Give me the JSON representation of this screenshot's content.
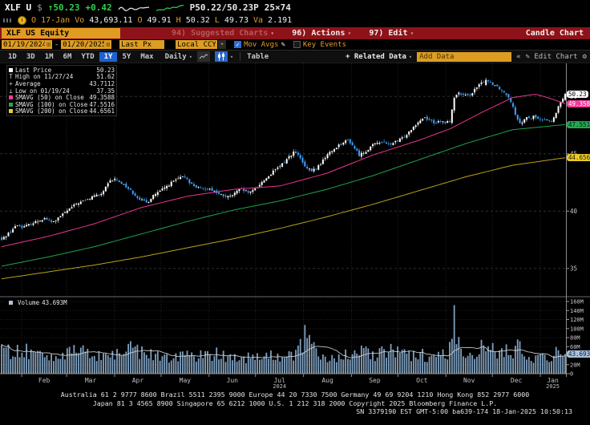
{
  "titlebar": {
    "ticker": "XLF U",
    "currency": "$",
    "last": "↑50.23",
    "change": "+0.42",
    "bid_ask": "P50.22/50.23P",
    "size": "25×74",
    "row2": {
      "o_label": "O",
      "date": "17-Jan",
      "vo_label": "Vo",
      "vo": "43,693.11",
      "open_label": "O",
      "open": "49.91",
      "high_label": "H",
      "high": "50.32",
      "low_label": "L",
      "low": "49.73",
      "va_label": "Va",
      "va": "2.191"
    }
  },
  "securitybar": {
    "security": "XLF US Equity",
    "suggested": "94) Suggested Charts",
    "actions": "96) Actions",
    "edit": "97) Edit",
    "right_label": "Candle Chart"
  },
  "toolbar": {
    "date_from": "01/19/2024",
    "date_to": "01/20/2025",
    "price_field": "Last Px",
    "currency_field": "Local CCY",
    "mov_avgs_label": "Mov Avgs",
    "key_events_label": "Key Events"
  },
  "tabsbar": {
    "ranges": [
      "1D",
      "3D",
      "1M",
      "6M",
      "YTD",
      "1Y",
      "5Y",
      "Max"
    ],
    "active_range": "1Y",
    "period": "Daily",
    "table_label": "Table",
    "related_data": "+ Related Data",
    "add_data_value": "Add Data",
    "edit_chart": "Edit Chart"
  },
  "icons": {
    "caret_down": "▾",
    "calendar": "⊞",
    "check": "✓",
    "pencil": "✎",
    "gear": "⚙",
    "collapse": "«"
  },
  "legend": {
    "items": [
      {
        "label": "Last Price",
        "value": "50.23"
      },
      {
        "glyph": "T",
        "label": "High on 11/27/24",
        "value": "51.62"
      },
      {
        "glyph": "+",
        "label": "Average",
        "value": "43.7112"
      },
      {
        "glyph": "⊥",
        "label": "Low on 01/19/24",
        "value": "37.35"
      },
      {
        "label": "SMAVG (50)  on Close",
        "value": "49.3588"
      },
      {
        "label": "SMAVG (100)  on Close",
        "value": "47.5516"
      },
      {
        "label": "SMAVG (200)  on Close",
        "value": "44.6561"
      }
    ]
  },
  "volume_legend": {
    "label": "Volume",
    "value": "43.693M"
  },
  "badges": {
    "last": {
      "text": "50.23",
      "value": 50.23
    },
    "sma50": {
      "text": "49.3588",
      "value": 49.3588
    },
    "sma100": {
      "text": "47.5516",
      "value": 47.5516
    },
    "sma200": {
      "text": "44.6561",
      "value": 44.6561
    },
    "volume": {
      "text": "43.693M",
      "value_m": 43.693
    }
  },
  "colors": {
    "up_candle": "#ffffff",
    "down_candle": "#3fa2ff",
    "sma50": "#e8378e",
    "sma100": "#1fa34d",
    "sma200": "#b8a11c",
    "volume_bar": "#7fa0c0",
    "volume_ma": "#d9d9d9",
    "amber": "#dd9d22",
    "red_bar": "#8d1219",
    "active_tab": "#1e62d0",
    "axis_text": "#c9c9c9"
  },
  "chart_data": {
    "type": "candlestick+volume",
    "security": "XLF US Equity",
    "date_range": [
      "2024-01-19",
      "2025-01-17"
    ],
    "last_price": 50.23,
    "high_marker": {
      "date": "11/27/24",
      "value": 51.62
    },
    "low_marker": {
      "date": "01/19/24",
      "value": 37.35
    },
    "average": 43.7112,
    "price_axis": {
      "ticks": [
        35,
        40,
        45,
        50
      ],
      "range": [
        34.2,
        52.3
      ]
    },
    "volume_axis": {
      "ticks_millions": [
        0,
        20,
        40,
        60,
        80,
        100,
        120,
        140,
        160
      ]
    },
    "months": [
      {
        "label": "Feb"
      },
      {
        "label": "Mar"
      },
      {
        "label": "Apr"
      },
      {
        "label": "May"
      },
      {
        "label": "Jun"
      },
      {
        "label": "Jul",
        "year": "2024"
      },
      {
        "label": "Aug"
      },
      {
        "label": "Sep"
      },
      {
        "label": "Oct"
      },
      {
        "label": "Nov"
      },
      {
        "label": "Dec"
      },
      {
        "label": "Jan",
        "year": "2025"
      }
    ],
    "weekly_closes": [
      [
        0,
        37.5
      ],
      [
        3,
        37.9
      ],
      [
        7,
        38.4
      ],
      [
        10,
        38.8
      ],
      [
        14,
        38.6
      ],
      [
        21,
        39.0
      ],
      [
        28,
        39.4
      ],
      [
        32,
        39.0
      ],
      [
        35,
        39.2
      ],
      [
        42,
        40.0
      ],
      [
        49,
        40.7
      ],
      [
        56,
        41.0
      ],
      [
        60,
        41.4
      ],
      [
        63,
        41.3
      ],
      [
        66,
        41.8
      ],
      [
        70,
        42.6
      ],
      [
        73,
        42.8
      ],
      [
        77,
        42.5
      ],
      [
        80,
        42.2
      ],
      [
        84,
        41.7
      ],
      [
        88,
        41.2
      ],
      [
        91,
        40.9
      ],
      [
        94,
        40.7
      ],
      [
        98,
        41.4
      ],
      [
        101,
        41.6
      ],
      [
        105,
        42.0
      ],
      [
        108,
        42.3
      ],
      [
        112,
        42.7
      ],
      [
        116,
        42.9
      ],
      [
        119,
        43.0
      ],
      [
        122,
        42.4
      ],
      [
        126,
        42.1
      ],
      [
        129,
        41.9
      ],
      [
        133,
        42.0
      ],
      [
        137,
        41.8
      ],
      [
        140,
        41.5
      ],
      [
        144,
        41.3
      ],
      [
        147,
        41.2
      ],
      [
        151,
        41.6
      ],
      [
        154,
        41.9
      ],
      [
        158,
        41.7
      ],
      [
        161,
        41.6
      ],
      [
        164,
        42.0
      ],
      [
        168,
        42.5
      ],
      [
        172,
        43.0
      ],
      [
        175,
        43.4
      ],
      [
        179,
        43.8
      ],
      [
        182,
        44.2
      ],
      [
        186,
        44.8
      ],
      [
        189,
        45.2
      ],
      [
        193,
        44.6
      ],
      [
        196,
        43.8
      ],
      [
        200,
        43.5
      ],
      [
        203,
        43.7
      ],
      [
        207,
        44.3
      ],
      [
        210,
        44.9
      ],
      [
        214,
        45.3
      ],
      [
        217,
        45.7
      ],
      [
        221,
        46.0
      ],
      [
        224,
        46.2
      ],
      [
        228,
        45.5
      ],
      [
        231,
        44.9
      ],
      [
        235,
        45.2
      ],
      [
        238,
        45.6
      ],
      [
        242,
        45.9
      ],
      [
        245,
        46.1
      ],
      [
        249,
        45.8
      ],
      [
        252,
        45.9
      ],
      [
        256,
        46.1
      ],
      [
        259,
        46.4
      ],
      [
        263,
        46.9
      ],
      [
        266,
        47.4
      ],
      [
        270,
        47.9
      ],
      [
        273,
        48.2
      ],
      [
        277,
        47.9
      ],
      [
        280,
        47.7
      ],
      [
        284,
        47.8
      ],
      [
        287,
        47.7
      ],
      [
        290,
        47.9
      ],
      [
        292,
        49.8
      ],
      [
        294,
        50.3
      ],
      [
        298,
        50.1
      ],
      [
        301,
        50.0
      ],
      [
        305,
        50.5
      ],
      [
        308,
        50.9
      ],
      [
        311,
        51.3
      ],
      [
        313,
        51.45
      ],
      [
        316,
        51.2
      ],
      [
        320,
        50.9
      ],
      [
        324,
        50.4
      ],
      [
        327,
        50.1
      ],
      [
        330,
        49.3
      ],
      [
        332,
        48.4
      ],
      [
        334,
        47.9
      ],
      [
        336,
        47.6
      ],
      [
        338,
        48.2
      ],
      [
        341,
        48.0
      ],
      [
        344,
        48.3
      ],
      [
        348,
        47.9
      ],
      [
        352,
        48.1
      ],
      [
        355,
        47.7
      ],
      [
        358,
        48.5
      ],
      [
        361,
        49.5
      ],
      [
        364,
        50.23
      ]
    ],
    "smavg": {
      "sma50": {
        "period": 50,
        "last": 49.3588,
        "anchors": [
          [
            0,
            36.9
          ],
          [
            30,
            37.8
          ],
          [
            60,
            38.9
          ],
          [
            90,
            40.3
          ],
          [
            120,
            41.3
          ],
          [
            150,
            41.9
          ],
          [
            180,
            42.2
          ],
          [
            210,
            43.3
          ],
          [
            240,
            44.9
          ],
          [
            270,
            46.2
          ],
          [
            290,
            47.2
          ],
          [
            310,
            48.6
          ],
          [
            330,
            49.9
          ],
          [
            345,
            50.2
          ],
          [
            355,
            49.8
          ],
          [
            364,
            49.36
          ]
        ]
      },
      "sma100": {
        "period": 100,
        "last": 47.5516,
        "anchors": [
          [
            0,
            35.2
          ],
          [
            30,
            36.0
          ],
          [
            60,
            36.9
          ],
          [
            90,
            38.0
          ],
          [
            120,
            39.1
          ],
          [
            150,
            40.1
          ],
          [
            180,
            40.9
          ],
          [
            210,
            41.9
          ],
          [
            240,
            43.1
          ],
          [
            270,
            44.5
          ],
          [
            300,
            45.9
          ],
          [
            330,
            47.1
          ],
          [
            364,
            47.55
          ]
        ]
      },
      "sma200": {
        "period": 200,
        "last": 44.6561,
        "anchors": [
          [
            0,
            34.1
          ],
          [
            30,
            34.7
          ],
          [
            60,
            35.3
          ],
          [
            90,
            36.0
          ],
          [
            120,
            36.8
          ],
          [
            150,
            37.6
          ],
          [
            180,
            38.5
          ],
          [
            210,
            39.5
          ],
          [
            240,
            40.6
          ],
          [
            270,
            41.8
          ],
          [
            300,
            43.0
          ],
          [
            330,
            44.0
          ],
          [
            364,
            44.66
          ]
        ]
      }
    },
    "volume_anchors_m": [
      [
        0,
        48
      ],
      [
        10,
        55
      ],
      [
        20,
        45
      ],
      [
        30,
        42
      ],
      [
        40,
        44
      ],
      [
        50,
        48
      ],
      [
        60,
        42
      ],
      [
        70,
        40
      ],
      [
        80,
        52
      ],
      [
        85,
        62
      ],
      [
        90,
        46
      ],
      [
        100,
        40
      ],
      [
        110,
        38
      ],
      [
        120,
        42
      ],
      [
        130,
        40
      ],
      [
        140,
        44
      ],
      [
        150,
        38
      ],
      [
        160,
        36
      ],
      [
        170,
        38
      ],
      [
        180,
        40
      ],
      [
        190,
        44
      ],
      [
        196,
        70
      ],
      [
        203,
        52
      ],
      [
        210,
        40
      ],
      [
        220,
        38
      ],
      [
        231,
        48
      ],
      [
        240,
        42
      ],
      [
        251,
        52
      ],
      [
        260,
        40
      ],
      [
        270,
        42
      ],
      [
        280,
        40
      ],
      [
        287,
        46
      ],
      [
        294,
        80
      ],
      [
        300,
        48
      ],
      [
        308,
        44
      ],
      [
        313,
        52
      ],
      [
        320,
        46
      ],
      [
        327,
        50
      ],
      [
        334,
        56
      ],
      [
        341,
        40
      ],
      [
        348,
        36
      ],
      [
        355,
        40
      ],
      [
        360,
        48
      ],
      [
        364,
        44
      ]
    ],
    "volume_spikes_m": [
      [
        10,
        64
      ],
      [
        83,
        72
      ],
      [
        139,
        58
      ],
      [
        196,
        108
      ],
      [
        251,
        66
      ],
      [
        293,
        152
      ],
      [
        310,
        75
      ],
      [
        317,
        68
      ],
      [
        334,
        76
      ]
    ],
    "last_volume_m": 43.693
  },
  "footer": {
    "line1": "Australia 61 2 9777 8600 Brazil 5511 2395 9000 Europe 44 20 7330 7500 Germany 49 69 9204 1210 Hong Kong 852 2977 6000",
    "line2": "Japan 81 3 4565 8900    Singapore 65 6212 1000    U.S. 1 212 318 2000      Copyright 2025 Bloomberg Finance L.P.",
    "line3": "SN 3379190 EST  GMT-5:00 ba639-174 18-Jan-2025 10:50:13"
  }
}
